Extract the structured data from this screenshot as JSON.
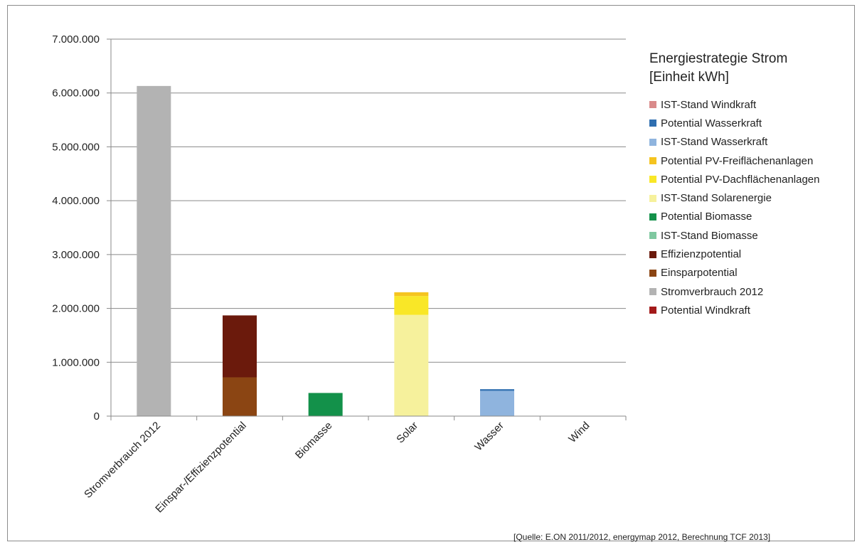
{
  "chart_data": {
    "type": "bar",
    "stacked": true,
    "title": "Energiestrategie Strom",
    "subtitle": "[Einheit kWh]",
    "categories": [
      "Stromverbrauch 2012",
      "Einspar-/Effizienzpotential",
      "Biomasse",
      "Solar",
      "Wasser",
      "Wind"
    ],
    "ylim": [
      0,
      7000000
    ],
    "yticks": [
      0,
      1000000,
      2000000,
      3000000,
      4000000,
      5000000,
      6000000,
      7000000
    ],
    "ytick_labels": [
      "0",
      "1.000.000",
      "2.000.000",
      "3.000.000",
      "4.000.000",
      "5.000.000",
      "6.000.000",
      "7.000.000"
    ],
    "grid": true,
    "legend_position": "right",
    "series": [
      {
        "name": "Stromverbrauch 2012",
        "color": "#b3b3b3",
        "values": [
          6130000,
          0,
          0,
          0,
          0,
          0
        ]
      },
      {
        "name": "Einsparpotential",
        "color": "#8b4513",
        "values": [
          0,
          720000,
          0,
          0,
          0,
          0
        ]
      },
      {
        "name": "Effizienzpotential",
        "color": "#6b1a0c",
        "values": [
          0,
          1150000,
          0,
          0,
          0,
          0
        ]
      },
      {
        "name": "IST-Stand Biomasse",
        "color": "#7fc8a0",
        "values": [
          0,
          0,
          0,
          0,
          0,
          0
        ]
      },
      {
        "name": "Potential Biomasse",
        "color": "#13914a",
        "values": [
          0,
          0,
          430000,
          0,
          0,
          0
        ]
      },
      {
        "name": "IST-Stand Solarenergie",
        "color": "#f6f19c",
        "values": [
          0,
          0,
          0,
          1880000,
          0,
          0
        ]
      },
      {
        "name": "Potential PV-Dachflächenanlagen",
        "color": "#f9e727",
        "values": [
          0,
          0,
          0,
          350000,
          0,
          0
        ]
      },
      {
        "name": "Potential PV-Freiflächenanlagen",
        "color": "#f5c41f",
        "values": [
          0,
          0,
          0,
          70000,
          0,
          0
        ]
      },
      {
        "name": "IST-Stand Wasserkraft",
        "color": "#8fb4de",
        "values": [
          0,
          0,
          0,
          0,
          470000,
          0
        ]
      },
      {
        "name": "Potential Wasserkraft",
        "color": "#2f6fb0",
        "values": [
          0,
          0,
          0,
          0,
          30000,
          0
        ]
      },
      {
        "name": "IST-Stand Windkraft",
        "color": "#d98a8a",
        "values": [
          0,
          0,
          0,
          0,
          0,
          0
        ]
      },
      {
        "name": "Potential Windkraft",
        "color": "#a31a1a",
        "values": [
          0,
          0,
          0,
          0,
          0,
          0
        ]
      }
    ],
    "legend_entries": [
      "IST-Stand Windkraft",
      "Potential Wasserkraft",
      "IST-Stand Wasserkraft",
      "Potential PV-Freiflächenanlagen",
      "Potential PV-Dachflächenanlagen",
      "IST-Stand Solarenergie",
      "Potential Biomasse",
      "IST-Stand Biomasse",
      "Effizienzpotential",
      "Einsparpotential",
      "Stromverbrauch 2012",
      "Potential Windkraft"
    ],
    "source_note": "[Quelle: E.ON 2011/2012, energymap 2012,  Berechnung TCF 2013]"
  }
}
